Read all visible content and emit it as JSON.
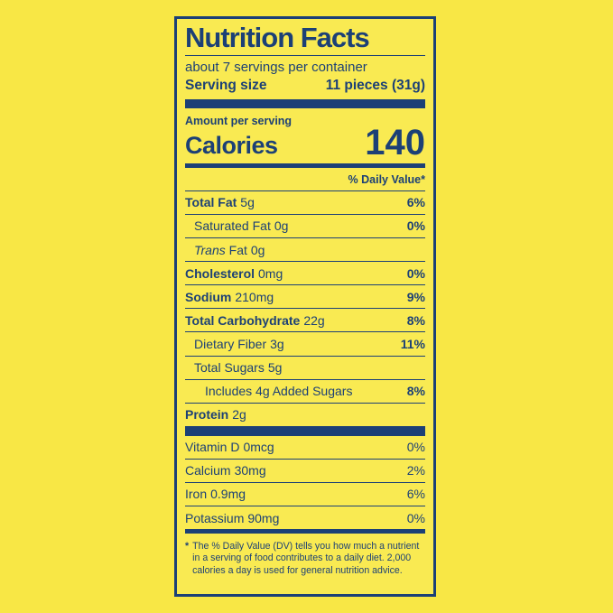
{
  "colors": {
    "background": "#F8E745",
    "panel_background": "#F9EA52",
    "ink": "#1C4076"
  },
  "label": {
    "title": "Nutrition Facts",
    "servings_per_container": "about 7 servings per container",
    "serving_size_label": "Serving size",
    "serving_size_value": "11 pieces (31g)",
    "amount_per_serving": "Amount per serving",
    "calories_label": "Calories",
    "calories_value": "140",
    "daily_value_header": "% Daily Value*",
    "rows": [
      {
        "name": "Total Fat",
        "amount": "5g",
        "dv": "6%"
      },
      {
        "name": "Saturated Fat",
        "amount": "0g",
        "dv": "0%"
      },
      {
        "name_italic": "Trans",
        "name": "Fat",
        "amount": "0g",
        "dv": ""
      },
      {
        "name": "Cholesterol",
        "amount": "0mg",
        "dv": "0%"
      },
      {
        "name": "Sodium",
        "amount": "210mg",
        "dv": "9%"
      },
      {
        "name": "Total Carbohydrate",
        "amount": "22g",
        "dv": "8%"
      },
      {
        "name": "Dietary Fiber",
        "amount": "3g",
        "dv": "11%"
      },
      {
        "name": "Total Sugars",
        "amount": "5g",
        "dv": ""
      },
      {
        "name": "Includes 4g Added Sugars",
        "amount": "",
        "dv": "8%"
      },
      {
        "name": "Protein",
        "amount": "2g",
        "dv": ""
      }
    ],
    "micronutrients": [
      {
        "name": "Vitamin D",
        "amount": "0mcg",
        "dv": "0%"
      },
      {
        "name": "Calcium",
        "amount": "30mg",
        "dv": "2%"
      },
      {
        "name": "Iron",
        "amount": "0.9mg",
        "dv": "6%"
      },
      {
        "name": "Potassium",
        "amount": "90mg",
        "dv": "0%"
      }
    ],
    "footnote_marker": "*",
    "footnote": "The % Daily Value (DV) tells you how much a nutrient in a serving of food contributes to a daily diet. 2,000 calories a day is used for general nutrition advice."
  }
}
